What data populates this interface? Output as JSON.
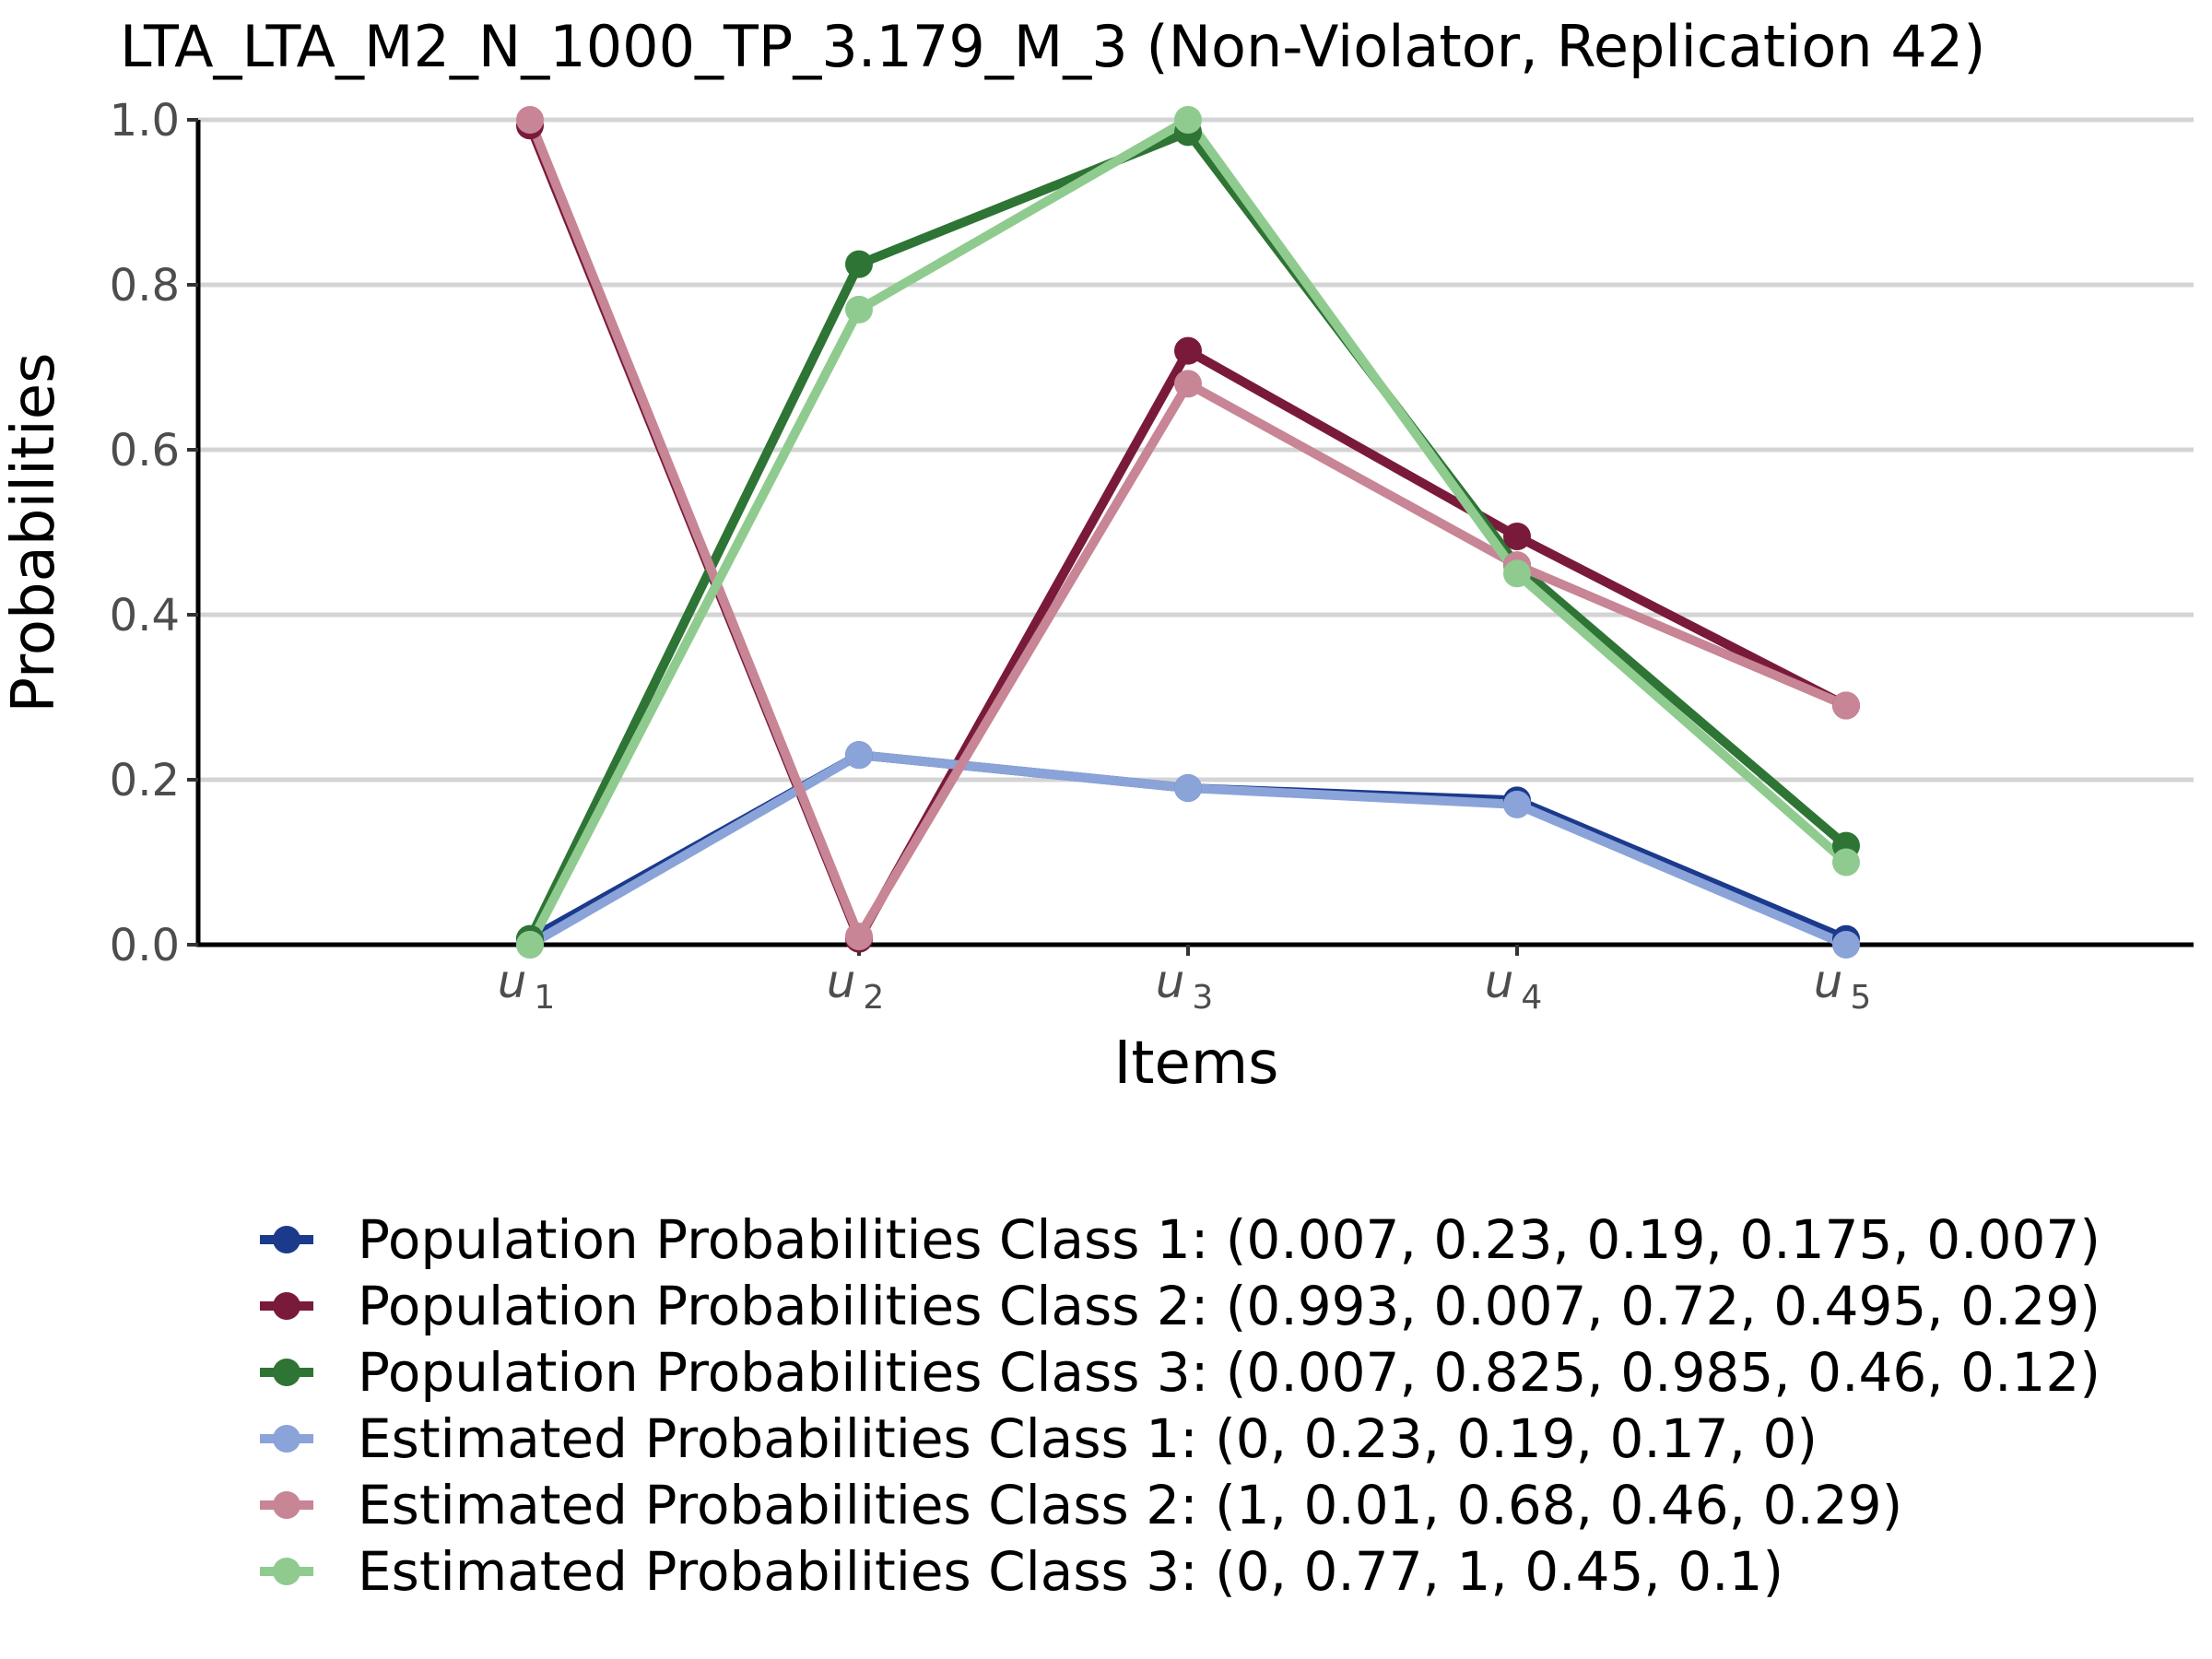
{
  "chart_data": {
    "type": "line",
    "title": "LTA_LTA_M2_N_1000_TP_3.179_M_3 (Non-Violator, Replication 42)",
    "xlabel": "Items",
    "ylabel": "Probabilities",
    "ylim": [
      0,
      1
    ],
    "yticks": [
      "0.0",
      "0.2",
      "0.4",
      "0.6",
      "0.8",
      "1.0"
    ],
    "categories": [
      {
        "base": "u",
        "sub": "1"
      },
      {
        "base": "u",
        "sub": "2"
      },
      {
        "base": "u",
        "sub": "3"
      },
      {
        "base": "u",
        "sub": "4"
      },
      {
        "base": "u",
        "sub": "5"
      }
    ],
    "grid": true,
    "legend_position": "bottom",
    "series": [
      {
        "name": "Population Probabilities Class 1: (0.007, 0.23, 0.19, 0.175, 0.007)",
        "color": "#1b3a8c",
        "values": [
          0.007,
          0.23,
          0.19,
          0.175,
          0.007
        ]
      },
      {
        "name": "Population Probabilities Class 2: (0.993, 0.007, 0.72, 0.495, 0.29)",
        "color": "#7a1a3a",
        "values": [
          0.993,
          0.007,
          0.72,
          0.495,
          0.29
        ]
      },
      {
        "name": "Population Probabilities Class 3: (0.007, 0.825, 0.985, 0.46, 0.12)",
        "color": "#2e7434",
        "values": [
          0.007,
          0.825,
          0.985,
          0.46,
          0.12
        ]
      },
      {
        "name": "Estimated Probabilities Class 1: (0, 0.23, 0.19, 0.17, 0)",
        "color": "#8aa3d9",
        "values": [
          0,
          0.23,
          0.19,
          0.17,
          0
        ]
      },
      {
        "name": "Estimated Probabilities Class 2: (1, 0.01, 0.68, 0.46, 0.29)",
        "color": "#c78596",
        "values": [
          1,
          0.01,
          0.68,
          0.46,
          0.29
        ]
      },
      {
        "name": "Estimated Probabilities Class 3: (0, 0.77, 1, 0.45, 0.1)",
        "color": "#8fcb8f",
        "values": [
          0,
          0.77,
          1,
          0.45,
          0.1
        ]
      }
    ]
  }
}
